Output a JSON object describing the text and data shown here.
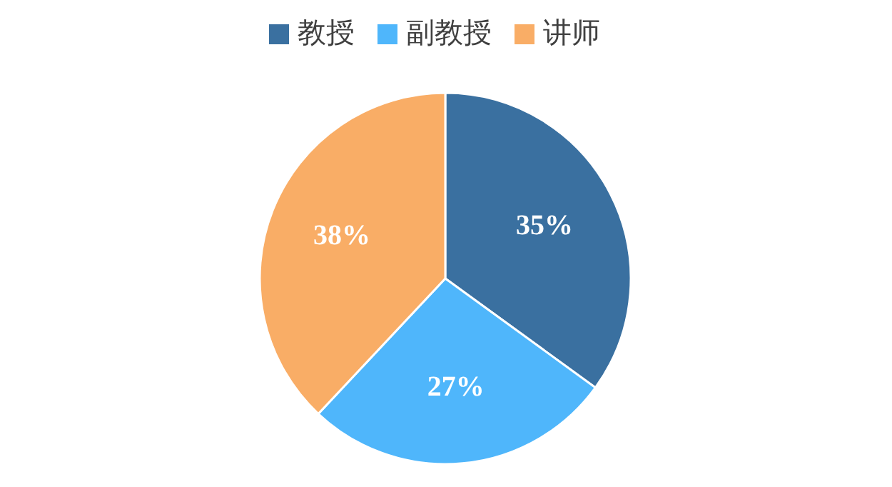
{
  "chart_data": {
    "type": "pie",
    "categories": [
      "教授",
      "副教授",
      "讲师"
    ],
    "values": [
      35,
      27,
      38
    ],
    "colors": [
      "#3a70a0",
      "#4fb6fb",
      "#f9ad66"
    ],
    "value_labels": [
      "35%",
      "27%",
      "38%"
    ],
    "legend": "top"
  }
}
